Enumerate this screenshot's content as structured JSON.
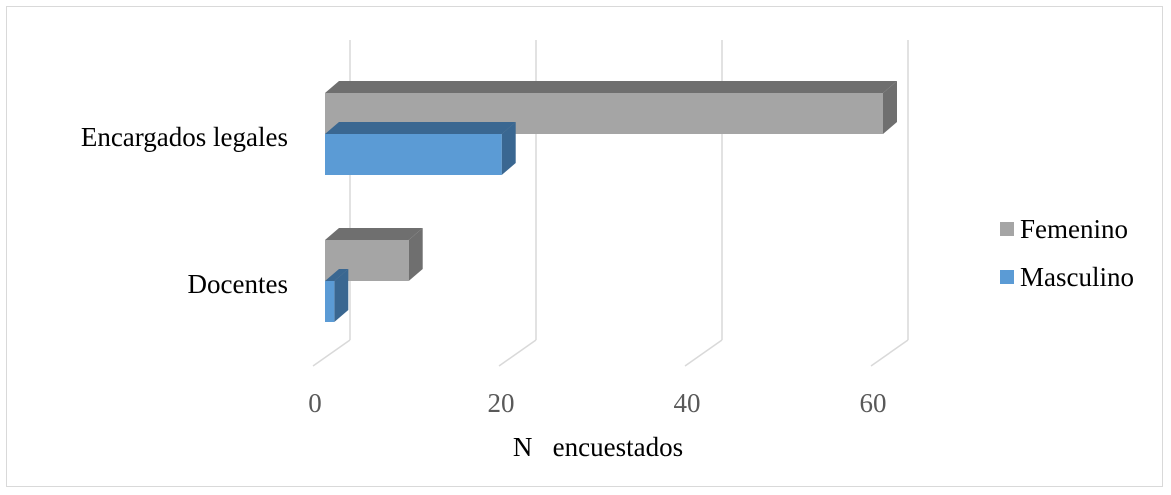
{
  "chart_data": {
    "type": "bar",
    "orientation": "horizontal",
    "three_d": true,
    "categories": [
      "Encargados legales",
      "Docentes"
    ],
    "series": [
      {
        "name": "Femenino",
        "values": [
          60,
          9
        ],
        "color": "#a5a5a5",
        "dark": "#6f6f6f"
      },
      {
        "name": "Masculino",
        "values": [
          19,
          1
        ],
        "color": "#5b9bd5",
        "dark": "#3a6791"
      }
    ],
    "xlabel": "N   encuestados",
    "xticks": [
      0,
      20,
      40,
      60
    ],
    "xlim": [
      0,
      60
    ],
    "grid": true,
    "legend": "right"
  }
}
